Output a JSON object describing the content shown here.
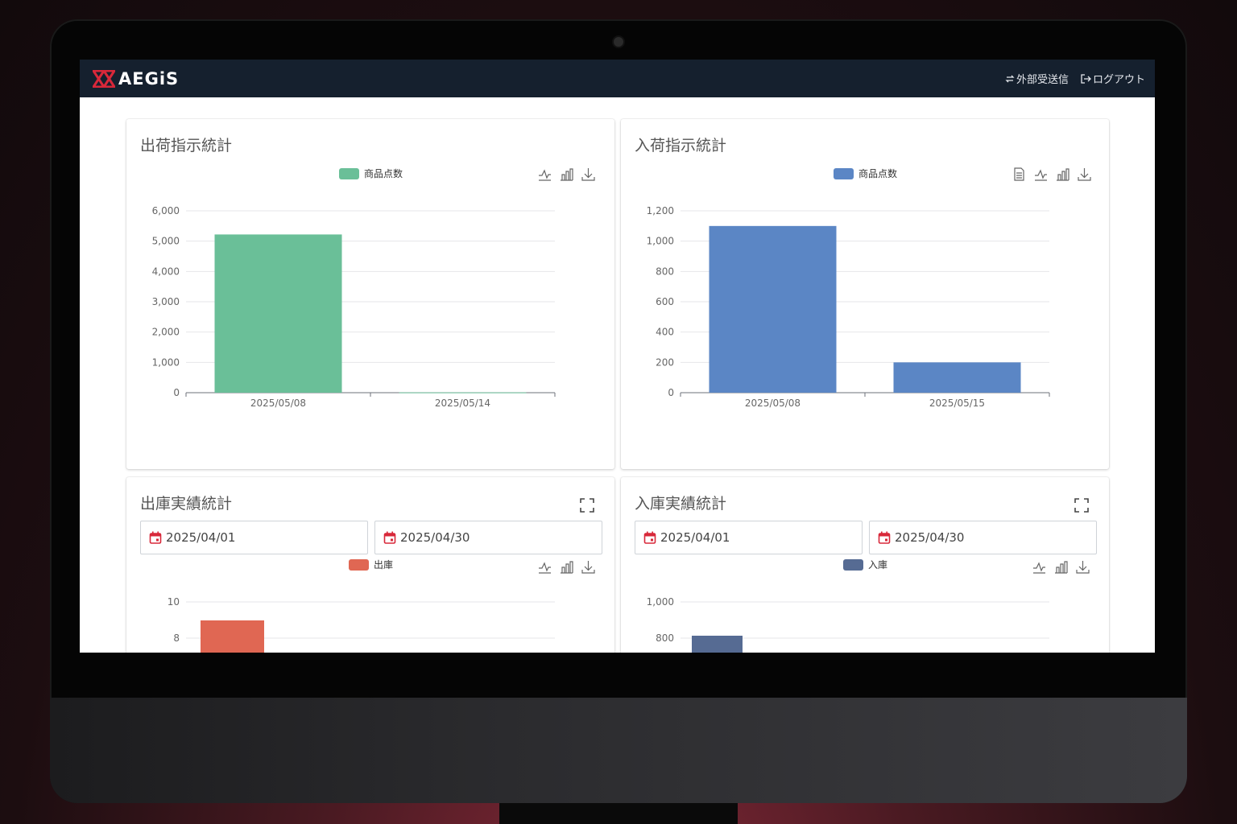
{
  "app": {
    "brand": "AEGiS",
    "nav": {
      "external": "外部受送信",
      "logout": "ログアウト"
    }
  },
  "colors": {
    "navbar": "#15202e",
    "green": "#6abf98",
    "blue": "#5b86c5",
    "red": "#e06753",
    "slate": "#566b93"
  },
  "cards": {
    "shipping_instructions": {
      "title": "出荷指示統計",
      "legend": "商品点数",
      "toolbox": [
        "line-chart-icon",
        "bar-chart-icon",
        "download-icon"
      ]
    },
    "receiving_instructions": {
      "title": "入荷指示統計",
      "legend": "商品点数",
      "toolbox": [
        "data-view-icon",
        "line-chart-icon",
        "bar-chart-icon",
        "download-icon"
      ]
    },
    "outbound_results": {
      "title": "出庫実績統計",
      "date_from": "2025/04/01",
      "date_to": "2025/04/30",
      "legend": "出庫"
    },
    "inbound_results": {
      "title": "入庫実績統計",
      "date_from": "2025/04/01",
      "date_to": "2025/04/30",
      "legend": "入庫"
    }
  },
  "chart_data": [
    {
      "type": "bar",
      "title": "出荷指示統計",
      "categories": [
        "2025/05/08",
        "2025/05/14"
      ],
      "series": [
        {
          "name": "商品点数",
          "values": [
            5220,
            10
          ]
        }
      ],
      "yticks": [
        "0",
        "1,000",
        "2,000",
        "3,000",
        "4,000",
        "5,000",
        "6,000"
      ],
      "ylim": [
        0,
        6000
      ],
      "grid": true,
      "legend": "top-center"
    },
    {
      "type": "bar",
      "title": "入荷指示統計",
      "categories": [
        "2025/05/08",
        "2025/05/15"
      ],
      "series": [
        {
          "name": "商品点数",
          "values": [
            1100,
            200
          ]
        }
      ],
      "yticks": [
        "0",
        "200",
        "400",
        "600",
        "800",
        "1,000",
        "1,200"
      ],
      "ylim": [
        0,
        1200
      ],
      "grid": true,
      "legend": "top-center"
    },
    {
      "type": "bar",
      "title": "出庫実績統計",
      "series": [
        {
          "name": "出庫",
          "values": [
            9
          ]
        }
      ],
      "yticks_visible": [
        "8",
        "10"
      ],
      "grid": true,
      "legend": "top-center"
    },
    {
      "type": "bar",
      "title": "入庫実績統計",
      "series": [
        {
          "name": "入庫",
          "values": [
            820
          ]
        }
      ],
      "yticks_visible": [
        "800",
        "1,000"
      ],
      "grid": true,
      "legend": "top-center"
    }
  ]
}
